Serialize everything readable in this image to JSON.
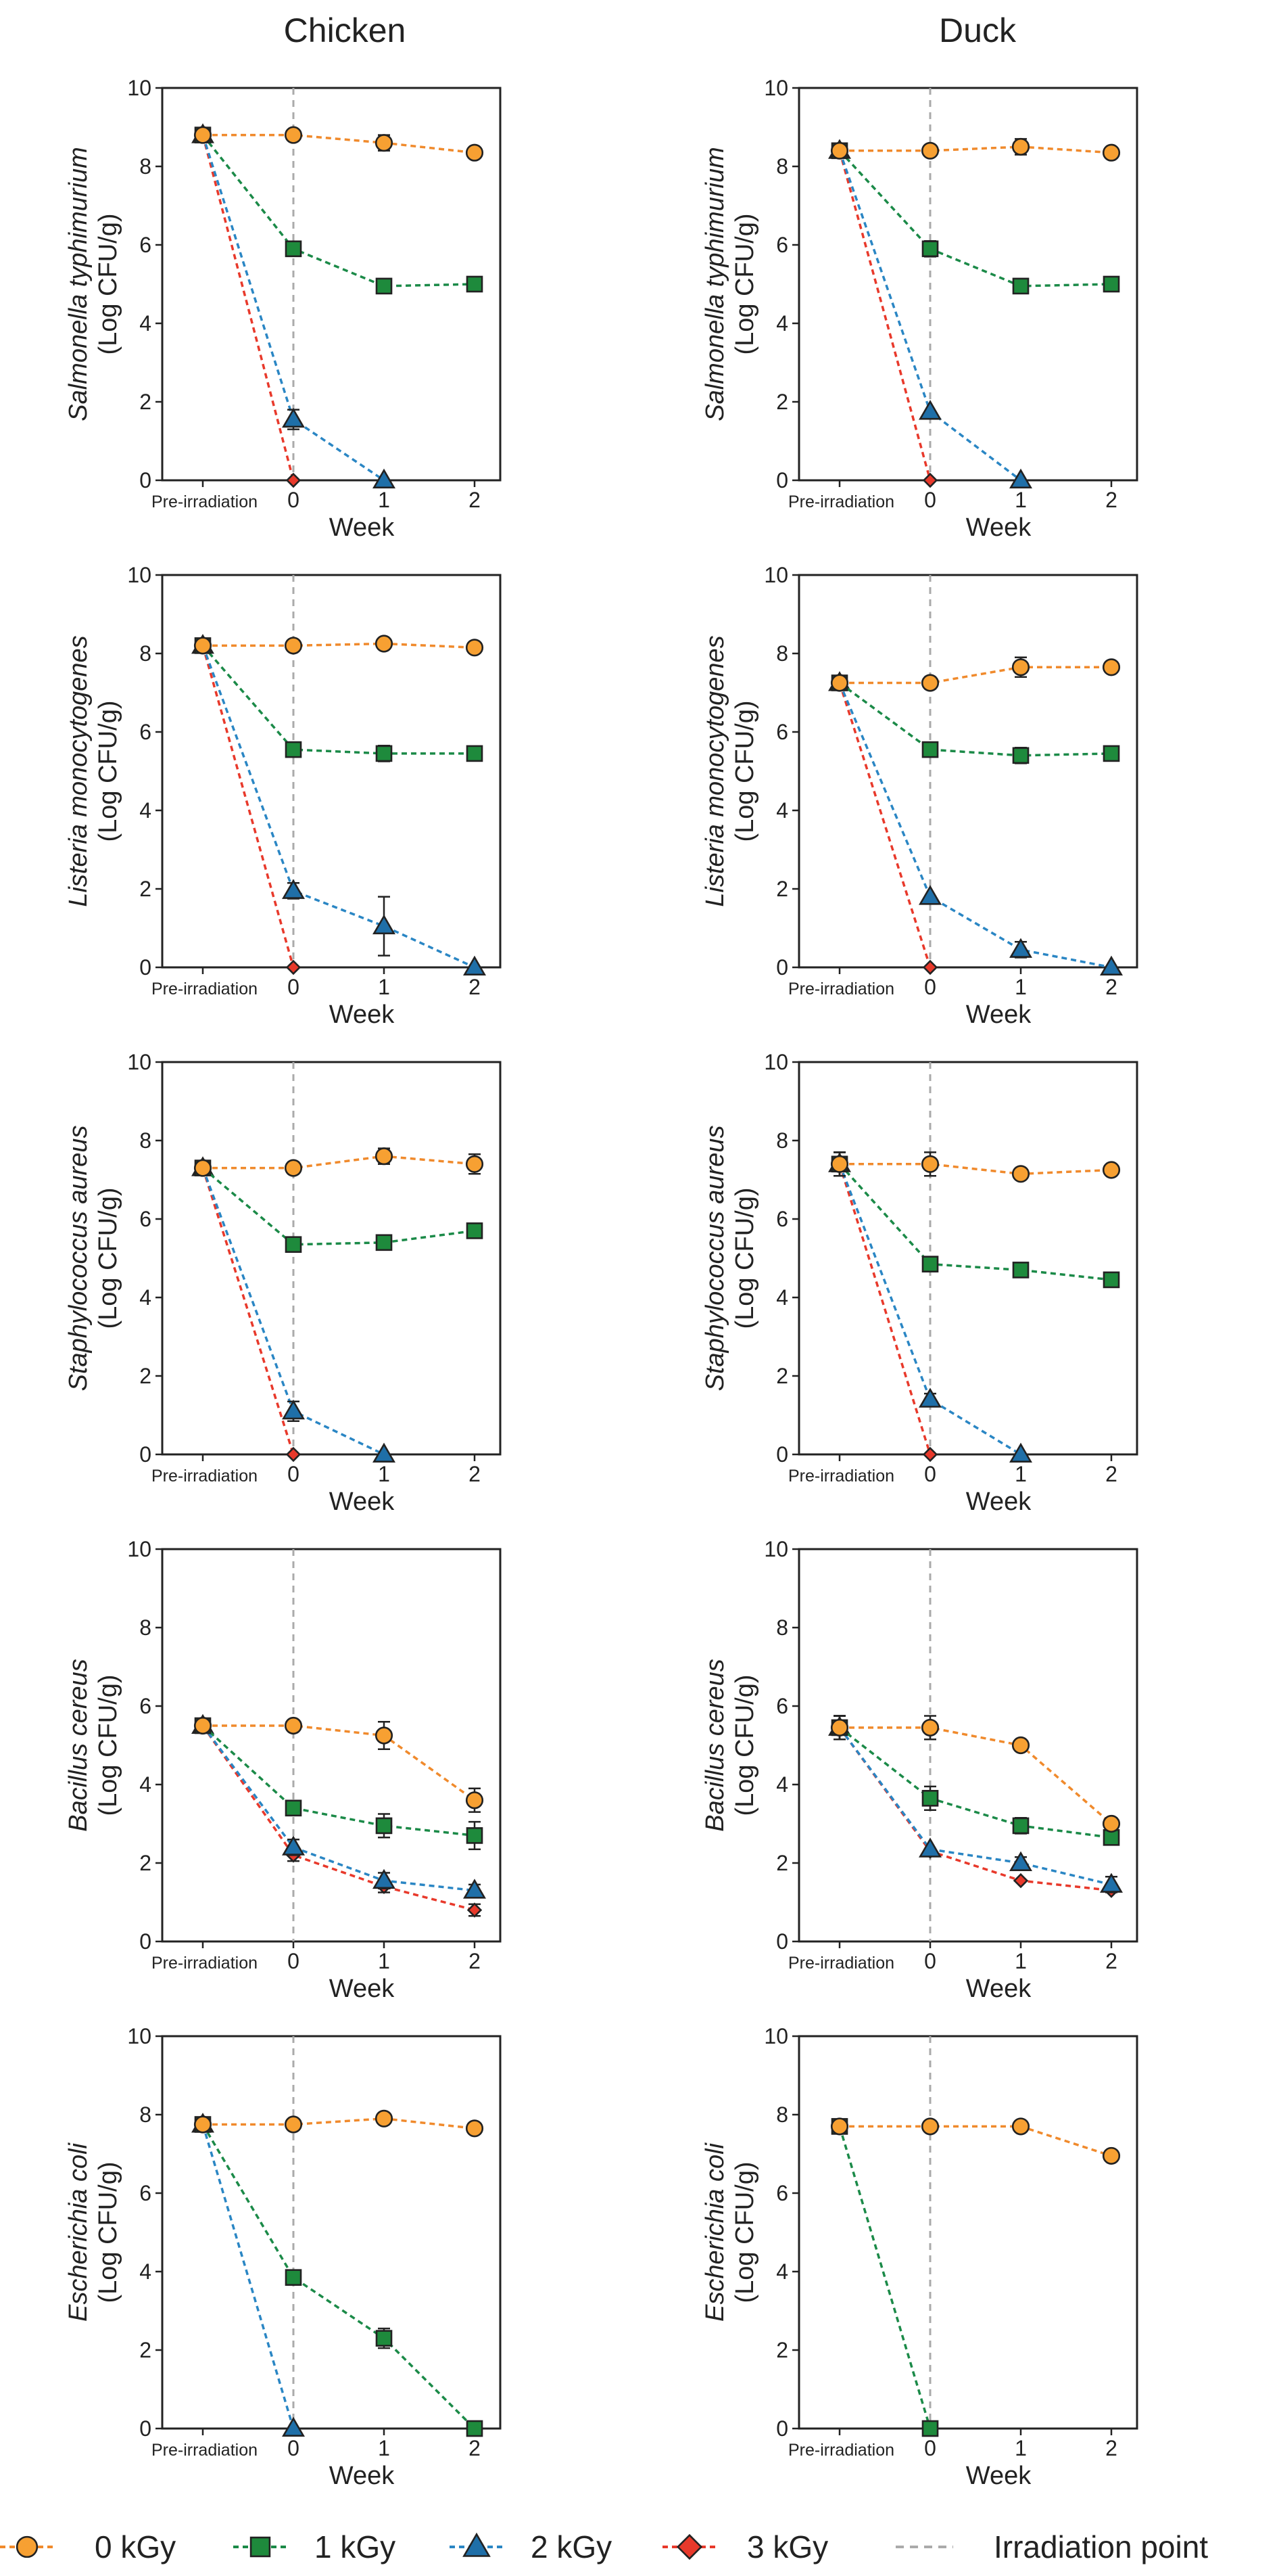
{
  "figure": {
    "column_titles": [
      "Chicken",
      "Duck"
    ],
    "x_axis_label": "Week",
    "y_unit_label": "(Log CFU/g)",
    "x_tick_labels": [
      "Pre-irradiation",
      "0",
      "1",
      "2"
    ],
    "irradiation_point_label": "Irradiation point"
  },
  "legend": [
    {
      "label": "0 kGy",
      "marker": "circle",
      "color": "#F7A032",
      "line": "#F08A2C"
    },
    {
      "label": "1 kGy",
      "marker": "square",
      "color": "#1E8A3C",
      "line": "#1B8A48"
    },
    {
      "label": "2 kGy",
      "marker": "triangle",
      "color": "#1F6FA8",
      "line": "#2A86C4"
    },
    {
      "label": "3 kGy",
      "marker": "diamond",
      "color": "#E8392B",
      "line": "#E8392B"
    }
  ],
  "chart_data": [
    {
      "type": "line",
      "title": "Chicken",
      "ylabel": "Salmonella typhimurium",
      "xlabel": "Week",
      "ylim": [
        0,
        10
      ],
      "categories": [
        "Pre-irradiation",
        "0",
        "1",
        "2"
      ],
      "series": [
        {
          "name": "0 kGy",
          "values": [
            8.8,
            8.8,
            8.6,
            8.35
          ],
          "err": [
            0.1,
            0.1,
            0.2,
            0.12
          ]
        },
        {
          "name": "1 kGy",
          "values": [
            8.8,
            5.9,
            4.95,
            5.0
          ],
          "err": [
            0.1,
            0.15,
            0.1,
            0.1
          ]
        },
        {
          "name": "2 kGy",
          "values": [
            8.8,
            1.55,
            0,
            null
          ],
          "err": [
            0.1,
            0.25,
            0,
            0
          ]
        },
        {
          "name": "3 kGy",
          "values": [
            8.8,
            0,
            null,
            null
          ],
          "err": [
            0.1,
            0,
            0,
            0
          ]
        }
      ]
    },
    {
      "type": "line",
      "title": "Duck",
      "ylabel": "Salmonella typhimurium",
      "xlabel": "Week",
      "ylim": [
        0,
        10
      ],
      "categories": [
        "Pre-irradiation",
        "0",
        "1",
        "2"
      ],
      "series": [
        {
          "name": "0 kGy",
          "values": [
            8.4,
            8.4,
            8.5,
            8.35
          ],
          "err": [
            0.1,
            0.1,
            0.2,
            0.12
          ]
        },
        {
          "name": "1 kGy",
          "values": [
            8.4,
            5.9,
            4.95,
            5.0
          ],
          "err": [
            0.1,
            0.2,
            0.1,
            0.1
          ]
        },
        {
          "name": "2 kGy",
          "values": [
            8.4,
            1.75,
            0,
            null
          ],
          "err": [
            0.1,
            0.1,
            0,
            0
          ]
        },
        {
          "name": "3 kGy",
          "values": [
            8.4,
            0,
            null,
            null
          ],
          "err": [
            0.1,
            0,
            0,
            0
          ]
        }
      ]
    },
    {
      "type": "line",
      "title": "Chicken",
      "ylabel": "Listeria monocytogenes",
      "xlabel": "Week",
      "ylim": [
        0,
        10
      ],
      "categories": [
        "Pre-irradiation",
        "0",
        "1",
        "2"
      ],
      "series": [
        {
          "name": "0 kGy",
          "values": [
            8.2,
            8.2,
            8.25,
            8.15
          ],
          "err": [
            0.1,
            0.1,
            0.1,
            0.1
          ]
        },
        {
          "name": "1 kGy",
          "values": [
            8.2,
            5.55,
            5.45,
            5.45
          ],
          "err": [
            0.1,
            0.1,
            0.2,
            0.15
          ]
        },
        {
          "name": "2 kGy",
          "values": [
            8.2,
            1.95,
            1.05,
            0
          ],
          "err": [
            0.1,
            0.2,
            0.75,
            0
          ]
        },
        {
          "name": "3 kGy",
          "values": [
            8.2,
            0,
            null,
            null
          ],
          "err": [
            0.1,
            0,
            0,
            0
          ]
        }
      ]
    },
    {
      "type": "line",
      "title": "Duck",
      "ylabel": "Listeria monocytogenes",
      "xlabel": "Week",
      "ylim": [
        0,
        10
      ],
      "categories": [
        "Pre-irradiation",
        "0",
        "1",
        "2"
      ],
      "series": [
        {
          "name": "0 kGy",
          "values": [
            7.25,
            7.25,
            7.65,
            7.65
          ],
          "err": [
            0.15,
            0.15,
            0.25,
            0.1
          ]
        },
        {
          "name": "1 kGy",
          "values": [
            7.25,
            5.55,
            5.4,
            5.45
          ],
          "err": [
            0.15,
            0.1,
            0.2,
            0.1
          ]
        },
        {
          "name": "2 kGy",
          "values": [
            7.25,
            1.8,
            0.45,
            0
          ],
          "err": [
            0.15,
            0.1,
            0.2,
            0
          ]
        },
        {
          "name": "3 kGy",
          "values": [
            7.25,
            0,
            null,
            null
          ],
          "err": [
            0.15,
            0,
            0,
            0
          ]
        }
      ]
    },
    {
      "type": "line",
      "title": "Chicken",
      "ylabel": "Staphylococcus aureus",
      "xlabel": "Week",
      "ylim": [
        0,
        10
      ],
      "categories": [
        "Pre-irradiation",
        "0",
        "1",
        "2"
      ],
      "series": [
        {
          "name": "0 kGy",
          "values": [
            7.3,
            7.3,
            7.6,
            7.4
          ],
          "err": [
            0.15,
            0.15,
            0.2,
            0.25
          ]
        },
        {
          "name": "1 kGy",
          "values": [
            7.3,
            5.35,
            5.4,
            5.7
          ],
          "err": [
            0.15,
            0.1,
            0.1,
            0.1
          ]
        },
        {
          "name": "2 kGy",
          "values": [
            7.3,
            1.1,
            0,
            null
          ],
          "err": [
            0.15,
            0.25,
            0,
            0
          ]
        },
        {
          "name": "3 kGy",
          "values": [
            7.3,
            0,
            null,
            null
          ],
          "err": [
            0.15,
            0,
            0,
            0
          ]
        }
      ]
    },
    {
      "type": "line",
      "title": "Duck",
      "ylabel": "Staphylococcus aureus",
      "xlabel": "Week",
      "ylim": [
        0,
        10
      ],
      "categories": [
        "Pre-irradiation",
        "0",
        "1",
        "2"
      ],
      "series": [
        {
          "name": "0 kGy",
          "values": [
            7.4,
            7.4,
            7.15,
            7.25
          ],
          "err": [
            0.3,
            0.3,
            0.1,
            0.1
          ]
        },
        {
          "name": "1 kGy",
          "values": [
            7.4,
            4.85,
            4.7,
            4.45
          ],
          "err": [
            0.3,
            0.1,
            0.1,
            0.1
          ]
        },
        {
          "name": "2 kGy",
          "values": [
            7.4,
            1.4,
            0,
            null
          ],
          "err": [
            0.3,
            0.15,
            0,
            0
          ]
        },
        {
          "name": "3 kGy",
          "values": [
            7.4,
            0,
            null,
            null
          ],
          "err": [
            0.3,
            0,
            0,
            0
          ]
        }
      ]
    },
    {
      "type": "line",
      "title": "Chicken",
      "ylabel": "Bacillus cereus",
      "xlabel": "Week",
      "ylim": [
        0,
        10
      ],
      "categories": [
        "Pre-irradiation",
        "0",
        "1",
        "2"
      ],
      "series": [
        {
          "name": "0 kGy",
          "values": [
            5.5,
            5.5,
            5.25,
            3.6
          ],
          "err": [
            0.1,
            0.1,
            0.35,
            0.3
          ]
        },
        {
          "name": "1 kGy",
          "values": [
            5.5,
            3.4,
            2.95,
            2.7
          ],
          "err": [
            0.1,
            0.15,
            0.3,
            0.35
          ]
        },
        {
          "name": "2 kGy",
          "values": [
            5.5,
            2.4,
            1.55,
            1.3
          ],
          "err": [
            0.1,
            0.2,
            0.2,
            0.15
          ]
        },
        {
          "name": "3 kGy",
          "values": [
            5.5,
            2.2,
            1.4,
            0.8
          ],
          "err": [
            0.1,
            0.15,
            0.15,
            0.15
          ]
        }
      ]
    },
    {
      "type": "line",
      "title": "Duck",
      "ylabel": "Bacillus cereus",
      "xlabel": "Week",
      "ylim": [
        0,
        10
      ],
      "categories": [
        "Pre-irradiation",
        "0",
        "1",
        "2"
      ],
      "series": [
        {
          "name": "0 kGy",
          "values": [
            5.45,
            5.45,
            5.0,
            3.0
          ],
          "err": [
            0.3,
            0.3,
            0.1,
            0.15
          ]
        },
        {
          "name": "1 kGy",
          "values": [
            5.45,
            3.65,
            2.95,
            2.65
          ],
          "err": [
            0.3,
            0.3,
            0.2,
            0.15
          ]
        },
        {
          "name": "2 kGy",
          "values": [
            5.45,
            2.35,
            2.0,
            1.45
          ],
          "err": [
            0.3,
            0.1,
            0.15,
            0.2
          ]
        },
        {
          "name": "3 kGy",
          "values": [
            5.45,
            2.3,
            1.55,
            1.3
          ],
          "err": [
            0.3,
            0.1,
            0.1,
            0.1
          ]
        }
      ]
    },
    {
      "type": "line",
      "title": "Chicken",
      "ylabel": "Escherichia coli",
      "xlabel": "Week",
      "ylim": [
        0,
        10
      ],
      "categories": [
        "Pre-irradiation",
        "0",
        "1",
        "2"
      ],
      "series": [
        {
          "name": "0 kGy",
          "values": [
            7.75,
            7.75,
            7.9,
            7.65
          ],
          "err": [
            0.1,
            0.1,
            0.1,
            0.1
          ]
        },
        {
          "name": "1 kGy",
          "values": [
            7.75,
            3.85,
            2.3,
            0
          ],
          "err": [
            0.1,
            0.1,
            0.25,
            0
          ]
        },
        {
          "name": "2 kGy",
          "values": [
            7.75,
            0,
            null,
            null
          ],
          "err": [
            0.1,
            0,
            0,
            0
          ]
        },
        {
          "name": "3 kGy",
          "values": [
            null,
            null,
            null,
            null
          ],
          "err": [
            0,
            0,
            0,
            0
          ]
        }
      ]
    },
    {
      "type": "line",
      "title": "Duck",
      "ylabel": "Escherichia coli",
      "xlabel": "Week",
      "ylim": [
        0,
        10
      ],
      "categories": [
        "Pre-irradiation",
        "0",
        "1",
        "2"
      ],
      "series": [
        {
          "name": "0 kGy",
          "values": [
            7.7,
            7.7,
            7.7,
            6.95
          ],
          "err": [
            0.1,
            0.1,
            0.1,
            0.1
          ]
        },
        {
          "name": "1 kGy",
          "values": [
            7.7,
            0,
            null,
            null
          ],
          "err": [
            0.1,
            0,
            0,
            0
          ]
        },
        {
          "name": "2 kGy",
          "values": [
            null,
            null,
            null,
            null
          ],
          "err": [
            0,
            0,
            0,
            0
          ]
        },
        {
          "name": "3 kGy",
          "values": [
            null,
            null,
            null,
            null
          ],
          "err": [
            0,
            0,
            0,
            0
          ]
        }
      ]
    }
  ]
}
